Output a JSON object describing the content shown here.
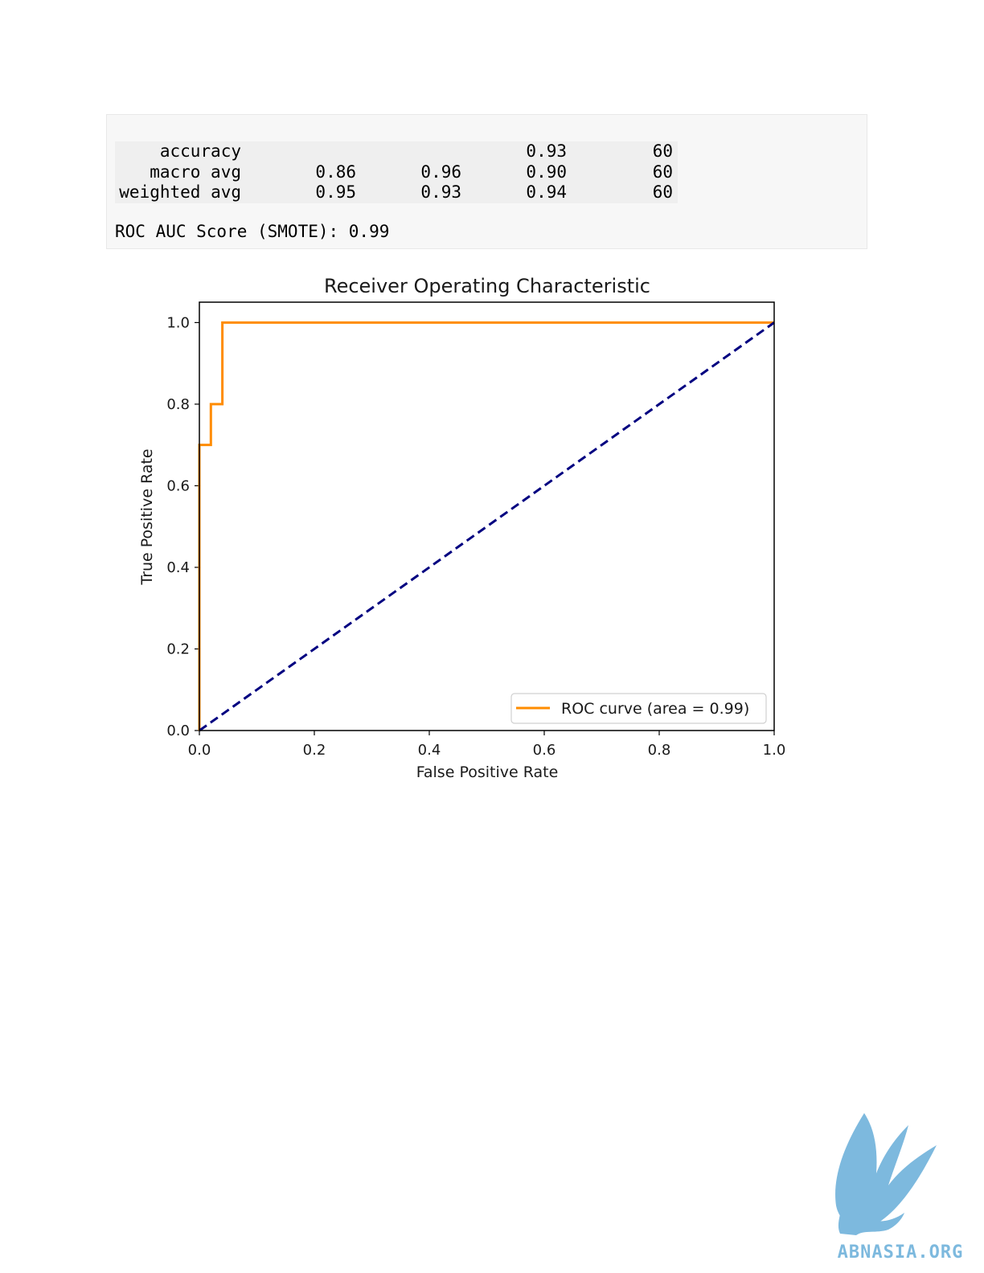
{
  "report": {
    "rows": [
      {
        "label": "accuracy",
        "precision": "",
        "recall": "",
        "f1": "0.93",
        "support": "60"
      },
      {
        "label": "macro avg",
        "precision": "0.86",
        "recall": "0.96",
        "f1": "0.90",
        "support": "60"
      },
      {
        "label": "weighted avg",
        "precision": "0.95",
        "recall": "0.93",
        "f1": "0.94",
        "support": "60"
      }
    ],
    "roc_auc_line": "ROC AUC Score (SMOTE): 0.99"
  },
  "chart_data": {
    "type": "line",
    "title": "Receiver Operating Characteristic",
    "xlabel": "False Positive Rate",
    "ylabel": "True Positive Rate",
    "xlim": [
      0.0,
      1.0
    ],
    "ylim": [
      0.0,
      1.05
    ],
    "xticks": [
      "0.0",
      "0.2",
      "0.4",
      "0.6",
      "0.8",
      "1.0"
    ],
    "yticks": [
      "0.0",
      "0.2",
      "0.4",
      "0.6",
      "0.8",
      "1.0"
    ],
    "series": [
      {
        "name": "ROC curve (area = 0.99)",
        "color": "#ff8c00",
        "style": "solid",
        "x": [
          0.0,
          0.0,
          0.02,
          0.02,
          0.04,
          0.04,
          1.0
        ],
        "y": [
          0.0,
          0.7,
          0.7,
          0.8,
          0.8,
          1.0,
          1.0
        ]
      },
      {
        "color": "#000080",
        "style": "dashed",
        "x": [
          0.0,
          1.0
        ],
        "y": [
          0.0,
          1.0
        ]
      }
    ],
    "legend": "lower-right",
    "grid": false
  },
  "logo": {
    "text": "ABNASIA.ORG",
    "color": "#7db9de"
  }
}
